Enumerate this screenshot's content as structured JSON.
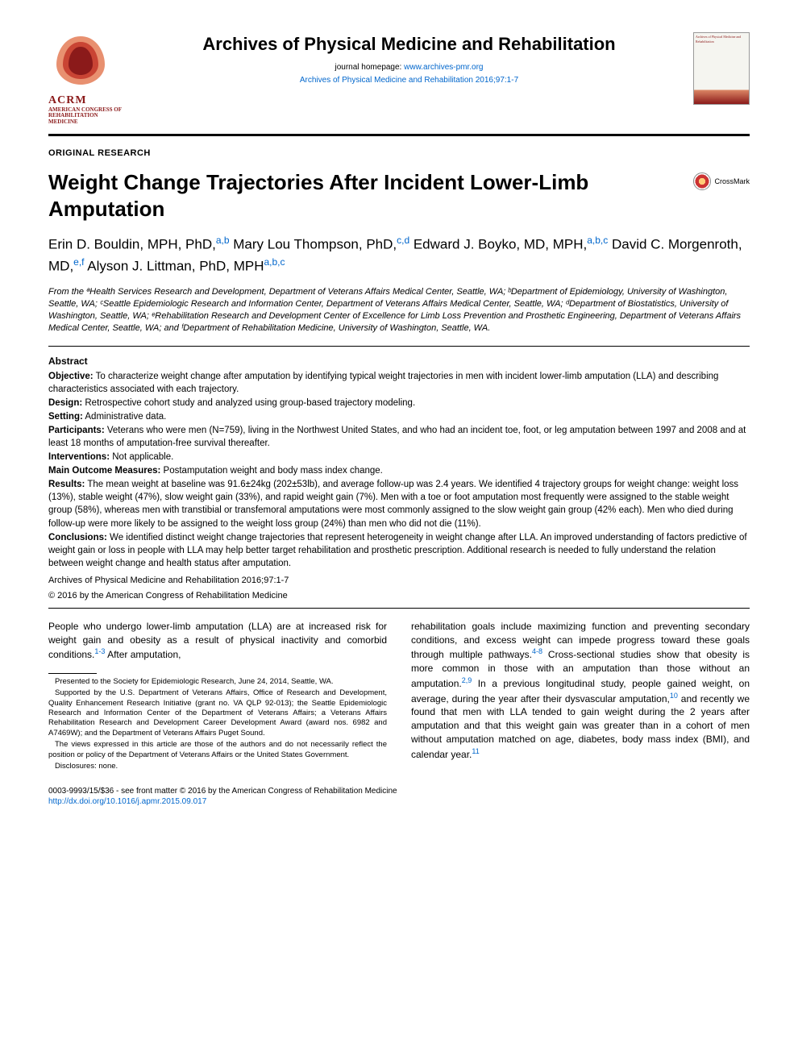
{
  "journal": {
    "name": "Archives of Physical Medicine and Rehabilitation",
    "homepage_label": "journal homepage:",
    "homepage_url": "www.archives-pmr.org",
    "citation": "Archives of Physical Medicine and Rehabilitation 2016;97:1-7",
    "logo_label": "ACRM",
    "logo_sub1": "AMERICAN CONGRESS OF",
    "logo_sub2": "REHABILITATION MEDICINE"
  },
  "article": {
    "section": "ORIGINAL RESEARCH",
    "title": "Weight Change Trajectories After Incident Lower-Limb Amputation",
    "crossmark": "CrossMark"
  },
  "authors_html": "Erin D. Bouldin, MPH, PhD,<sup class='aff-sup'>a,b</sup> Mary Lou Thompson, PhD,<sup class='aff-sup'>c,d</sup> Edward J. Boyko, MD, MPH,<sup class='aff-sup'>a,b,c</sup> David C. Morgenroth, MD,<sup class='aff-sup'>e,f</sup> Alyson J. Littman, PhD, MPH<sup class='aff-sup'>a,b,c</sup>",
  "affiliations": "From the ªHealth Services Research and Development, Department of Veterans Affairs Medical Center, Seattle, WA; ᵇDepartment of Epidemiology, University of Washington, Seattle, WA; ᶜSeattle Epidemiologic Research and Information Center, Department of Veterans Affairs Medical Center, Seattle, WA; ᵈDepartment of Biostatistics, University of Washington, Seattle, WA; ᵉRehabilitation Research and Development Center of Excellence for Limb Loss Prevention and Prosthetic Engineering, Department of Veterans Affairs Medical Center, Seattle, WA; and ᶠDepartment of Rehabilitation Medicine, University of Washington, Seattle, WA.",
  "abstract": {
    "heading": "Abstract",
    "objective_label": "Objective:",
    "objective": "To characterize weight change after amputation by identifying typical weight trajectories in men with incident lower-limb amputation (LLA) and describing characteristics associated with each trajectory.",
    "design_label": "Design:",
    "design": "Retrospective cohort study and analyzed using group-based trajectory modeling.",
    "setting_label": "Setting:",
    "setting": "Administrative data.",
    "participants_label": "Participants:",
    "participants": "Veterans who were men (N=759), living in the Northwest United States, and who had an incident toe, foot, or leg amputation between 1997 and 2008 and at least 18 months of amputation-free survival thereafter.",
    "interventions_label": "Interventions:",
    "interventions": "Not applicable.",
    "outcomes_label": "Main Outcome Measures:",
    "outcomes": "Postamputation weight and body mass index change.",
    "results_label": "Results:",
    "results": "The mean weight at baseline was 91.6±24kg (202±53lb), and average follow-up was 2.4 years. We identified 4 trajectory groups for weight change: weight loss (13%), stable weight (47%), slow weight gain (33%), and rapid weight gain (7%). Men with a toe or foot amputation most frequently were assigned to the stable weight group (58%), whereas men with transtibial or transfemoral amputations were most commonly assigned to the slow weight gain group (42% each). Men who died during follow-up were more likely to be assigned to the weight loss group (24%) than men who did not die (11%).",
    "conclusions_label": "Conclusions:",
    "conclusions": "We identified distinct weight change trajectories that represent heterogeneity in weight change after LLA. An improved understanding of factors predictive of weight gain or loss in people with LLA may help better target rehabilitation and prosthetic prescription. Additional research is needed to fully understand the relation between weight change and health status after amputation.",
    "archives_cite": "Archives of Physical Medicine and Rehabilitation 2016;97:1-7",
    "copyright": "© 2016 by the American Congress of Rehabilitation Medicine"
  },
  "body": {
    "col1_html": "People who undergo lower-limb amputation (LLA) are at increased risk for weight gain and obesity as a result of physical inactivity and comorbid conditions.<sup class='cite-sup'>1-3</sup> After amputation,",
    "col2_html": "rehabilitation goals include maximizing function and preventing secondary conditions, and excess weight can impede progress toward these goals through multiple pathways.<sup class='cite-sup'>4-8</sup> Cross-sectional studies show that obesity is more common in those with an amputation than those without an amputation.<sup class='cite-sup'>2,9</sup> In a previous longitudinal study, people gained weight, on average, during the year after their dysvascular amputation,<sup class='cite-sup'>10</sup> and recently we found that men with LLA tended to gain weight during the 2 years after amputation and that this weight gain was greater than in a cohort of men without amputation matched on age, diabetes, body mass index (BMI), and calendar year.<sup class='cite-sup'>11</sup>"
  },
  "footnotes": {
    "presented": "Presented to the Society for Epidemiologic Research, June 24, 2014, Seattle, WA.",
    "supported": "Supported by the U.S. Department of Veterans Affairs, Office of Research and Development, Quality Enhancement Research Initiative (grant no. VA QLP 92-013); the Seattle Epidemiologic Research and Information Center of the Department of Veterans Affairs; a Veterans Affairs Rehabilitation Research and Development Career Development Award (award nos. 6982 and A7469W); and the Department of Veterans Affairs Puget Sound.",
    "views": "The views expressed in this article are those of the authors and do not necessarily reflect the position or policy of the Department of Veterans Affairs or the United States Government.",
    "disclosures": "Disclosures: none."
  },
  "bottom": {
    "front_matter": "0003-9993/15/$36 - see front matter © 2016 by the American Congress of Rehabilitation Medicine",
    "doi": "http://dx.doi.org/10.1016/j.apmr.2015.09.017"
  },
  "colors": {
    "link": "#0066cc",
    "acrm_red": "#8b1a1a",
    "text": "#000000",
    "background": "#ffffff"
  },
  "typography": {
    "journal_name_size": 22,
    "article_title_size": 26,
    "authors_size": 17,
    "abstract_size": 11.5,
    "body_size": 12,
    "footnote_size": 9.5
  }
}
